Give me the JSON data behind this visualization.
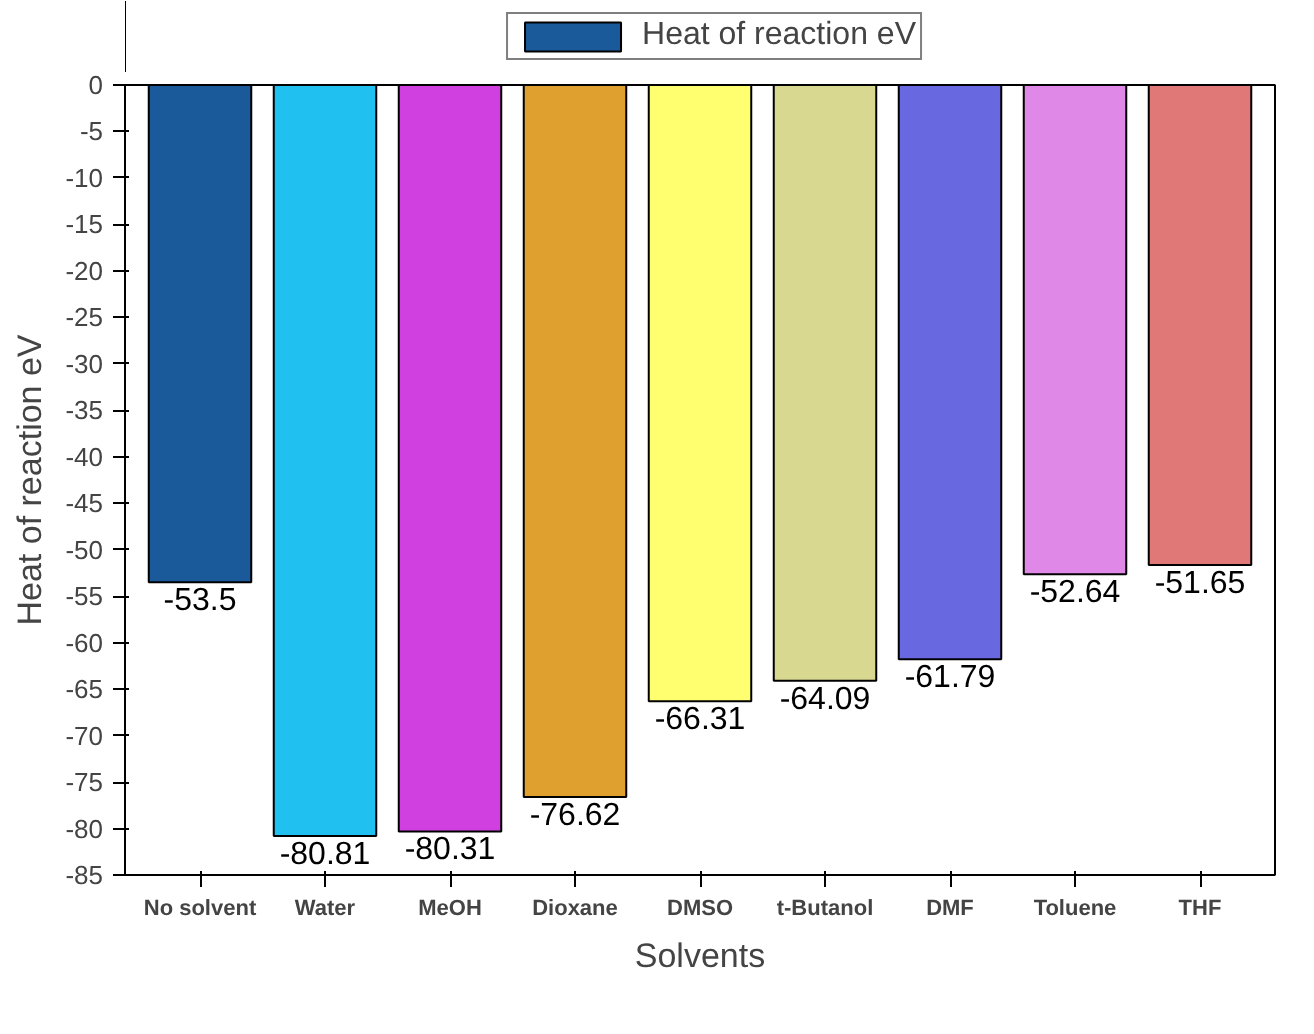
{
  "chart_data": {
    "type": "bar",
    "xlabel": "Solvents",
    "ylabel": "Heat of reaction eV",
    "categories": [
      "No solvent",
      "Water",
      "MeOH",
      "Dioxane",
      "DMSO",
      "t-Butanol",
      "DMF",
      "Toluene",
      "THF"
    ],
    "series": [
      {
        "name": "Heat of reaction eV",
        "values": [
          -53.5,
          -80.81,
          -80.31,
          -76.62,
          -66.31,
          -64.09,
          -61.79,
          -52.64,
          -51.65
        ],
        "colors": [
          "#1a5a9a",
          "#20c0f0",
          "#d040e0",
          "#e0a030",
          "#ffff70",
          "#d8d890",
          "#6868e0",
          "#e088e8",
          "#e07878"
        ]
      }
    ],
    "ylim": [
      -85,
      0
    ],
    "yticks": [
      0,
      -5,
      -10,
      -15,
      -20,
      -25,
      -30,
      -35,
      -40,
      -45,
      -50,
      -55,
      -60,
      -65,
      -70,
      -75,
      -80,
      -85
    ],
    "data_labels": true,
    "legend": "top",
    "grid": false
  }
}
